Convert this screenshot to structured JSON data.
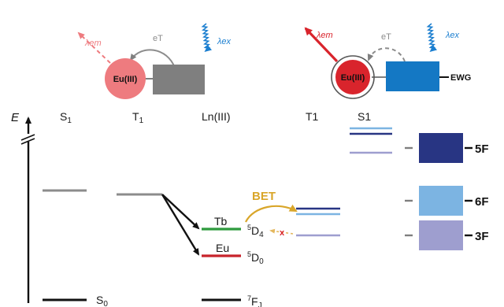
{
  "colors": {
    "eu_faded": "#ee7b7f",
    "eu_bright": "#d9242c",
    "gray_block": "#7f7f7f",
    "blue_block": "#1478c4",
    "blue_arrow": "#1c7fd0",
    "bet": "#d9a62a",
    "tb_line": "#2e9a3e",
    "eu_line": "#c8232b",
    "dark_navy": "#283583",
    "light_blue": "#7cb4e2",
    "lavender": "#9e9ecf"
  },
  "top_left": {
    "eu_label": "Eu(III)",
    "lambda_em": "λem",
    "lambda_ex": "λex",
    "et_label": "eT"
  },
  "top_right": {
    "eu_label": "Eu(III)",
    "lambda_em": "λem",
    "lambda_ex": "λex",
    "et_label": "eT",
    "ewg_label": "EWG"
  },
  "energy_axis": {
    "label": "E"
  },
  "columns": {
    "s1": "S1_base",
    "t1": "T1_base",
    "ln": "Ln(III)",
    "t1_right": "T1",
    "s1_right": "S1"
  },
  "levels": {
    "s0": "S0",
    "tb": "Tb",
    "tb_state": "5D4",
    "eu": "Eu",
    "eu_state": "5D0",
    "ground_state": "7FJ"
  },
  "bet_label": "BET",
  "block_labels": [
    "5F",
    "6F",
    "3F"
  ]
}
